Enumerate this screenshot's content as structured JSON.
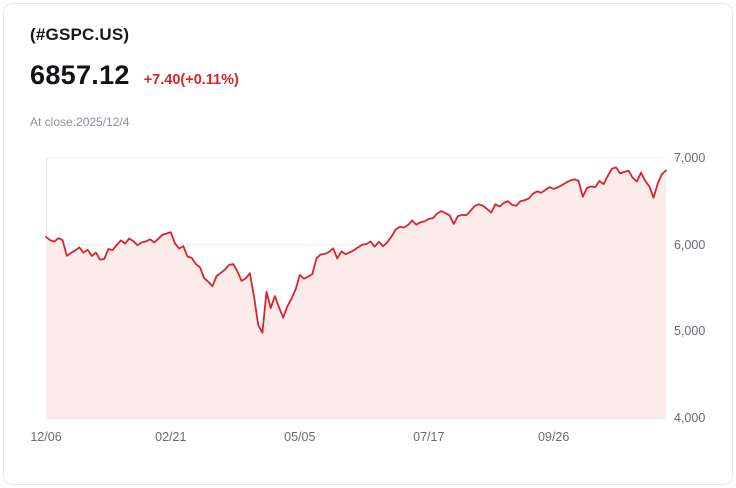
{
  "header": {
    "symbol": "(#GSPC.US)",
    "price": "6857.12",
    "change": "+7.40(+0.11%)",
    "close_info": "At close:2025/12/4"
  },
  "colors": {
    "change_text": "#d9232f",
    "line": "#d9232f",
    "fill": "#fbecea"
  },
  "chart_data": {
    "type": "area",
    "title": "(#GSPC.US)",
    "xlabel": "",
    "ylabel": "",
    "ylim": [
      4000,
      7000
    ],
    "grid": true,
    "legend": "none",
    "x_ticks": [
      "12/06",
      "02/21",
      "05/05",
      "07/17",
      "09/26"
    ],
    "x_tick_indices": [
      0,
      30,
      61,
      92,
      122
    ],
    "y_ticks": [
      "7,000",
      "6,000",
      "5,000",
      "4,000"
    ],
    "y_tick_values": [
      7000,
      6000,
      5000,
      4000
    ],
    "values": [
      6090,
      6052,
      6035,
      6075,
      6051,
      5872,
      5906,
      5931,
      5970,
      5907,
      5942,
      5869,
      5909,
      5827,
      5836,
      5950,
      5937,
      5996,
      6049,
      6012,
      6071,
      6040,
      5994,
      6026,
      6038,
      6062,
      6026,
      6068,
      6115,
      6129,
      6144,
      6013,
      5955,
      5983,
      5862,
      5849,
      5778,
      5739,
      5615,
      5572,
      5521,
      5639,
      5675,
      5711,
      5767,
      5777,
      5693,
      5581,
      5612,
      5671,
      5396,
      5074,
      4983,
      5456,
      5268,
      5406,
      5276,
      5158,
      5288,
      5376,
      5485,
      5650,
      5607,
      5631,
      5660,
      5844,
      5887,
      5892,
      5917,
      5958,
      5842,
      5922,
      5889,
      5912,
      5936,
      5970,
      6000,
      6006,
      6038,
      5977,
      6033,
      5981,
      6025,
      6092,
      6173,
      6205,
      6198,
      6227,
      6279,
      6230,
      6259,
      6268,
      6297,
      6306,
      6358,
      6389,
      6363,
      6339,
      6238,
      6330,
      6345,
      6340,
      6389,
      6445,
      6466,
      6450,
      6411,
      6370,
      6466,
      6440,
      6481,
      6501,
      6460,
      6448,
      6502,
      6512,
      6532,
      6587,
      6615,
      6600,
      6631,
      6664,
      6644,
      6661,
      6689,
      6716,
      6740,
      6754,
      6735,
      6553,
      6654,
      6671,
      6664,
      6735,
      6699,
      6792,
      6876,
      6891,
      6822,
      6840,
      6852,
      6772,
      6729,
      6832,
      6737,
      6672,
      6542,
      6705,
      6812,
      6857
    ]
  }
}
